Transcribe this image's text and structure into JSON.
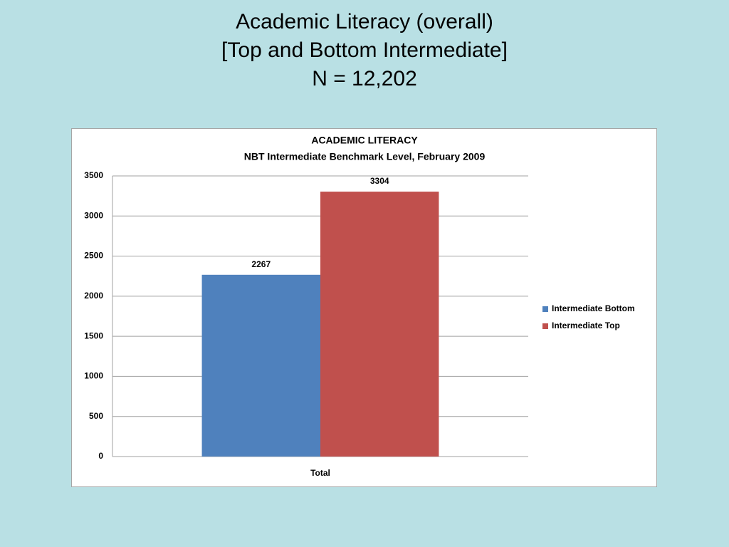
{
  "slide_title": [
    "Academic Literacy (overall)",
    "[Top and Bottom Intermediate]",
    "N = 12,202"
  ],
  "chart_data": {
    "type": "bar",
    "title": "ACADEMIC LITERACY",
    "subtitle": "NBT Intermediate Benchmark Level, February 2009",
    "categories": [
      "Total"
    ],
    "series": [
      {
        "name": "Intermediate Bottom",
        "color": "#4f81bd",
        "values": [
          2267
        ]
      },
      {
        "name": "Intermediate Top",
        "color": "#c0504d",
        "values": [
          3304
        ]
      }
    ],
    "ylim": [
      0,
      3500
    ],
    "yticks": [
      0,
      500,
      1000,
      1500,
      2000,
      2500,
      3000,
      3500
    ],
    "grid": true,
    "legend": "right"
  }
}
